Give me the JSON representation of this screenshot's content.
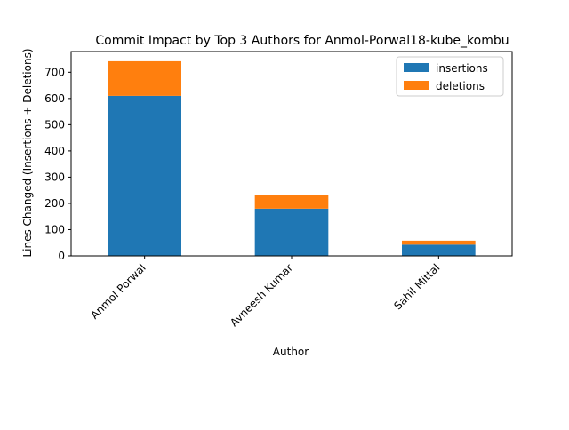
{
  "chart_data": {
    "type": "bar",
    "stacked": true,
    "title": "Commit Impact by Top 3 Authors for Anmol-Porwal18-kube_kombu",
    "xlabel": "Author",
    "ylabel": "Lines Changed (Insertions + Deletions)",
    "categories": [
      "Anmol Porwal",
      "Avneesh Kumar",
      "Sahil Mittal"
    ],
    "series": [
      {
        "name": "insertions",
        "values": [
          610,
          180,
          43
        ],
        "color": "#1f77b4"
      },
      {
        "name": "deletions",
        "values": [
          132,
          53,
          15
        ],
        "color": "#ff7f0e"
      }
    ],
    "yticks": [
      0,
      100,
      200,
      300,
      400,
      500,
      600,
      700
    ],
    "ylim": [
      0,
      779
    ],
    "legend_position": "top-right",
    "grid": false
  }
}
